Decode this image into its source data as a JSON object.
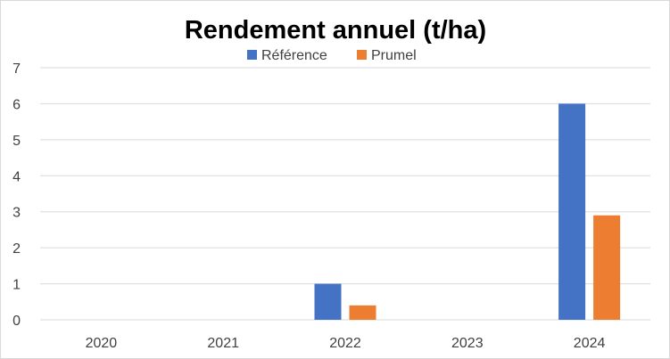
{
  "chart_data": {
    "type": "bar",
    "title": "Rendement annuel (t/ha)",
    "xlabel": "",
    "ylabel": "",
    "categories": [
      "2020",
      "2021",
      "2022",
      "2023",
      "2024"
    ],
    "series": [
      {
        "name": "Référence",
        "values": [
          0,
          0,
          1,
          0,
          6
        ],
        "color": "#4472c4"
      },
      {
        "name": "Prumel",
        "values": [
          0,
          0,
          0.4,
          0,
          2.9
        ],
        "color": "#ed7d31"
      }
    ],
    "ylim": [
      0,
      7
    ],
    "yticks": [
      "0",
      "1",
      "2",
      "3",
      "4",
      "5",
      "6",
      "7"
    ],
    "grid": true,
    "legend_position": "top",
    "gridline_color": "#d9d9d9"
  }
}
